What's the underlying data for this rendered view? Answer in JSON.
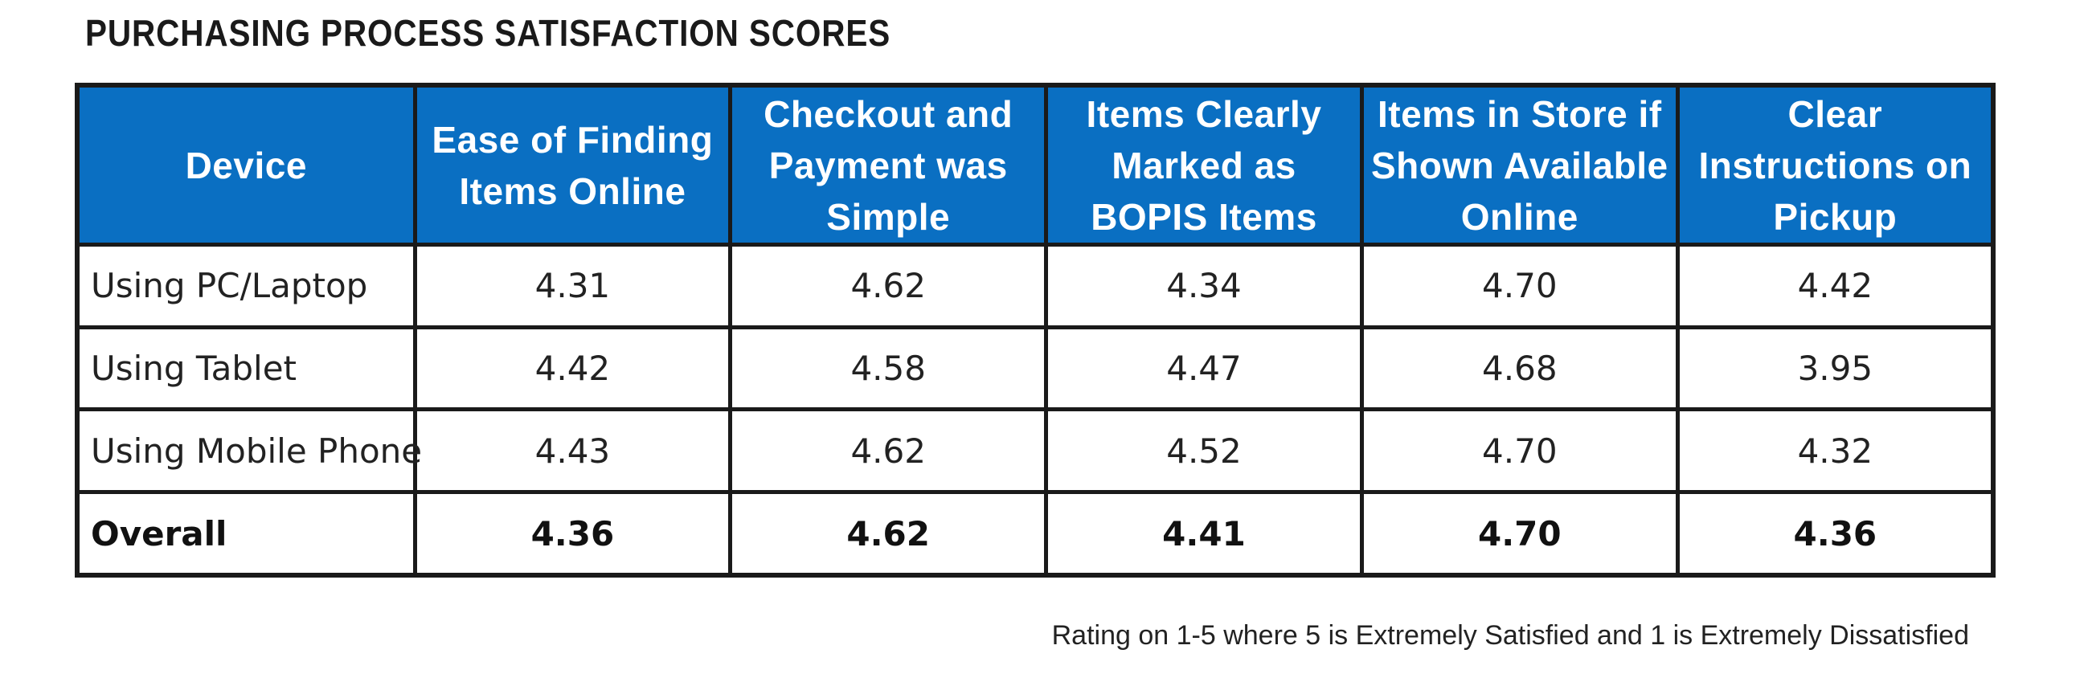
{
  "title": "PURCHASING PROCESS SATISFACTION SCORES",
  "footnote": "Rating on 1-5 where 5 is Extremely Satisfied and 1 is Extremely Dissatisfied",
  "colors": {
    "header_bg": "#0a6fc2",
    "header_text": "#ffffff",
    "border": "#1a1a1a"
  },
  "chart_data": {
    "type": "table",
    "title": "PURCHASING PROCESS SATISFACTION SCORES",
    "columns": [
      "Device",
      "Ease of Finding Items Online",
      "Checkout and Payment was Simple",
      "Items Clearly Marked as BOPIS Items",
      "Items in Store if Shown Available Online",
      "Clear Instructions on Pickup"
    ],
    "rows": [
      {
        "label": "Using PC/Laptop",
        "values": [
          "4.31",
          "4.62",
          "4.34",
          "4.70",
          "4.42"
        ]
      },
      {
        "label": "Using Tablet",
        "values": [
          "4.42",
          "4.58",
          "4.47",
          "4.68",
          "3.95"
        ]
      },
      {
        "label": "Using Mobile Phone",
        "values": [
          "4.43",
          "4.62",
          "4.52",
          "4.70",
          "4.32"
        ]
      },
      {
        "label": "Overall",
        "values": [
          "4.36",
          "4.62",
          "4.41",
          "4.70",
          "4.36"
        ]
      }
    ]
  }
}
